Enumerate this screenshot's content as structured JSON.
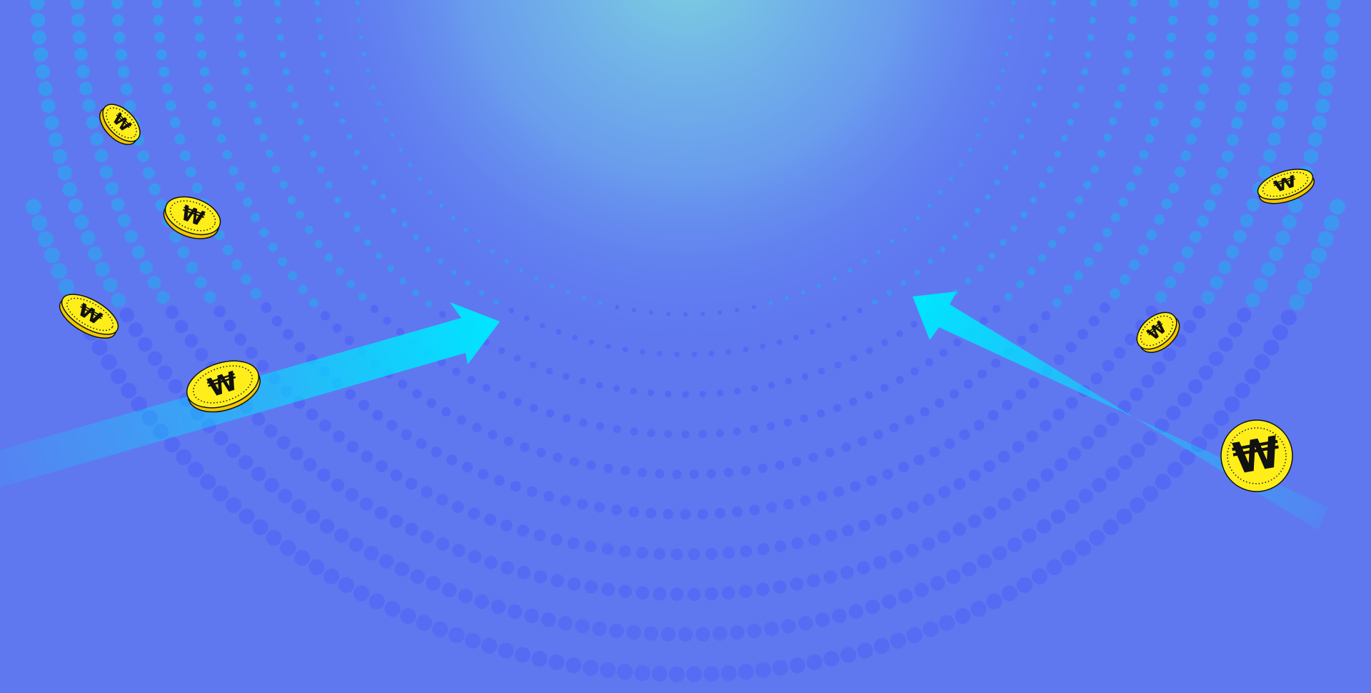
{
  "scene": {
    "background_color": "#5f78f0",
    "glow_color": "#7fd8de",
    "dot_color_top": "#33a0f0",
    "dot_color_bottom": "#4f63f5",
    "arrow_color": "#00e5ff",
    "coin_color": "#ffee1a",
    "coin_edge_color": "#f2c800",
    "coin_outline_color": "#111111",
    "coin_symbol": "₩"
  }
}
